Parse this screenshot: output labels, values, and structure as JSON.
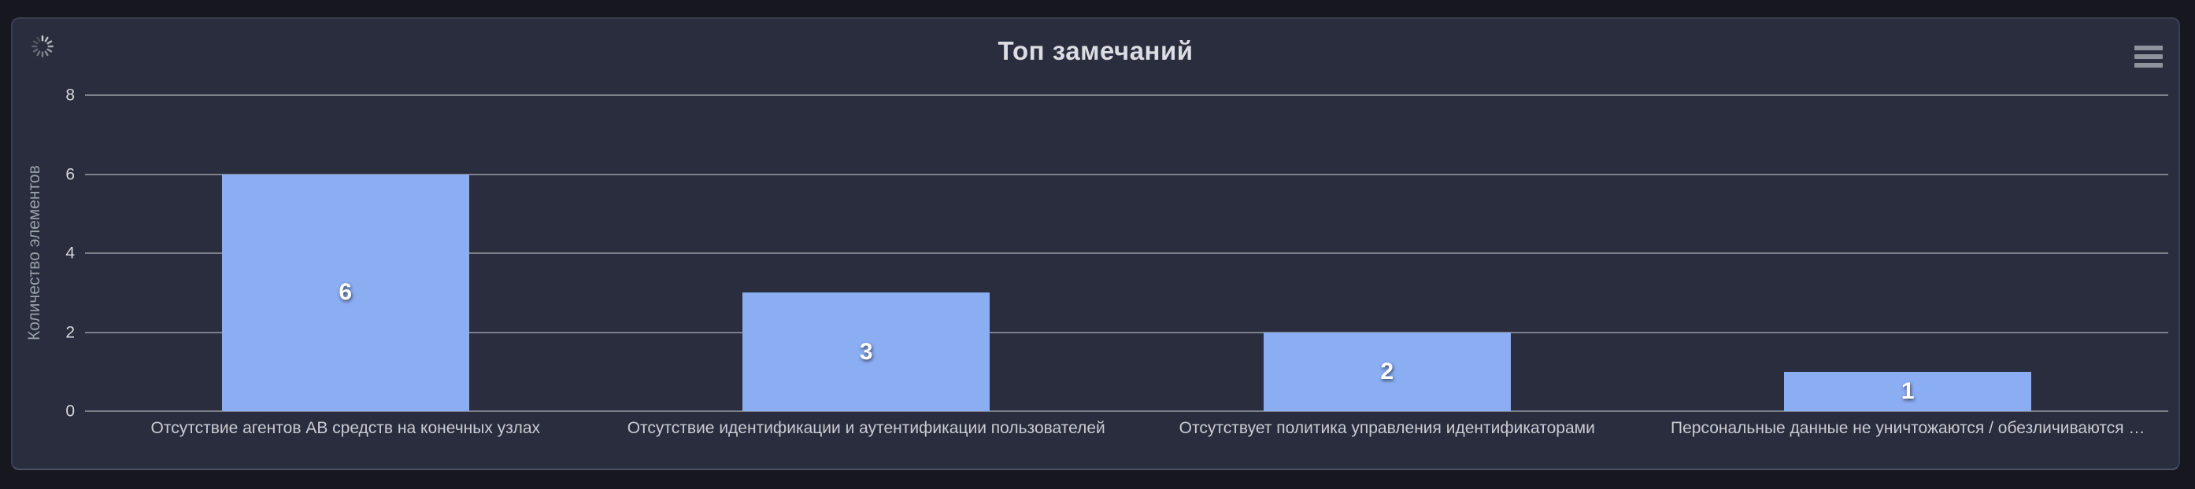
{
  "header": {
    "spinner_icon": "loading-spinner",
    "menu_icon": "hamburger-menu"
  },
  "colors": {
    "page_bg": "#16171f",
    "panel_bg": "#292d3e",
    "bar": "#8badf2",
    "gridline": "#7c808b",
    "title_text": "#dcdde2",
    "axis_text": "#d6d7db"
  },
  "chart_data": {
    "type": "bar",
    "title": "Топ замечаний",
    "categories": [
      "Отсутствие агентов АВ средств на конечных узлах",
      "Отсутствие идентификации и аутентификации пользователей",
      "Отсутствует политика управления идентификаторами",
      "Персональные данные не уничтожаются / обезличиваются …"
    ],
    "values": [
      6,
      3,
      2,
      1
    ],
    "xlabel": "",
    "ylabel": "Количество элементов",
    "yticks": [
      0,
      2,
      4,
      6,
      8
    ],
    "ylim": [
      0,
      8
    ],
    "grid": true,
    "legend": false,
    "bar_color": "#8badf2",
    "value_labels": true
  }
}
